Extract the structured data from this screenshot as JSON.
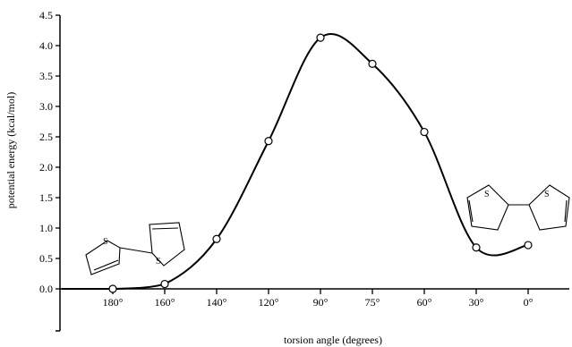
{
  "chart_data": {
    "type": "line",
    "xlabel": "torsion angle (degrees)",
    "ylabel": "potential energy (kcal/mol)",
    "categories": [
      "180°",
      "160°",
      "140°",
      "120°",
      "90°",
      "75°",
      "60°",
      "30°",
      "0°"
    ],
    "ylim": [
      0,
      4.5
    ],
    "yticks": [
      "0.0",
      "0.5",
      "1.0",
      "1.5",
      "2.0",
      "2.5",
      "3.0",
      "3.5",
      "4.0",
      "4.5"
    ],
    "series": [
      {
        "name": "",
        "values": [
          0.0,
          0.08,
          0.82,
          2.43,
          4.13,
          3.7,
          2.58,
          0.68,
          0.72
        ]
      }
    ],
    "annotations": [
      "S",
      "S",
      "S",
      "S"
    ],
    "grid": false
  }
}
